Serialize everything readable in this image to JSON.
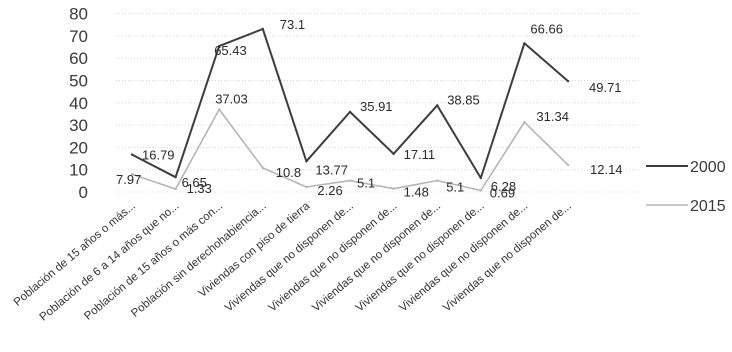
{
  "chart_data": {
    "type": "line",
    "categories": [
      "Población de 15 años o más...",
      "Población de 6 a 14 años que no...",
      "Población de 15 años o más con...",
      "Población sin derechohabiencia...",
      "Viviendas con piso de tierra",
      "Viviendas que no disponen de...",
      "Viviendas que no disponen de...",
      "Viviendas que no disponen de...",
      "Viviendas que no disponen de...",
      "Viviendas que no disponen de...",
      "Viviendas que no disponen de..."
    ],
    "series": [
      {
        "name": "2000",
        "color": "#3d3d3d",
        "values": [
          16.79,
          6.65,
          65.43,
          73.1,
          13.77,
          35.91,
          17.11,
          38.85,
          6.28,
          66.66,
          49.71
        ],
        "labels": [
          "16.79",
          "6.65",
          "65.43",
          "73.1",
          "13.77",
          "35.91",
          "17.11",
          "38.85",
          "6.28",
          "66.66",
          "49.71"
        ]
      },
      {
        "name": "2015",
        "color": "#b5b5b5",
        "values": [
          7.97,
          1.33,
          37.03,
          10.8,
          2.26,
          5.1,
          1.48,
          5.1,
          0.69,
          31.34,
          12.14
        ],
        "labels": [
          "7.97",
          "1.33",
          "37.03",
          "10.8",
          "2.26",
          "5.1",
          "1.48",
          "5.1",
          "0.69",
          "31.34",
          "12.14"
        ]
      }
    ],
    "ylim": [
      0,
      80
    ],
    "yticks": [
      "0",
      "10",
      "20",
      "30",
      "40",
      "50",
      "60",
      "70",
      "80"
    ],
    "grid": true,
    "legend": "right"
  }
}
